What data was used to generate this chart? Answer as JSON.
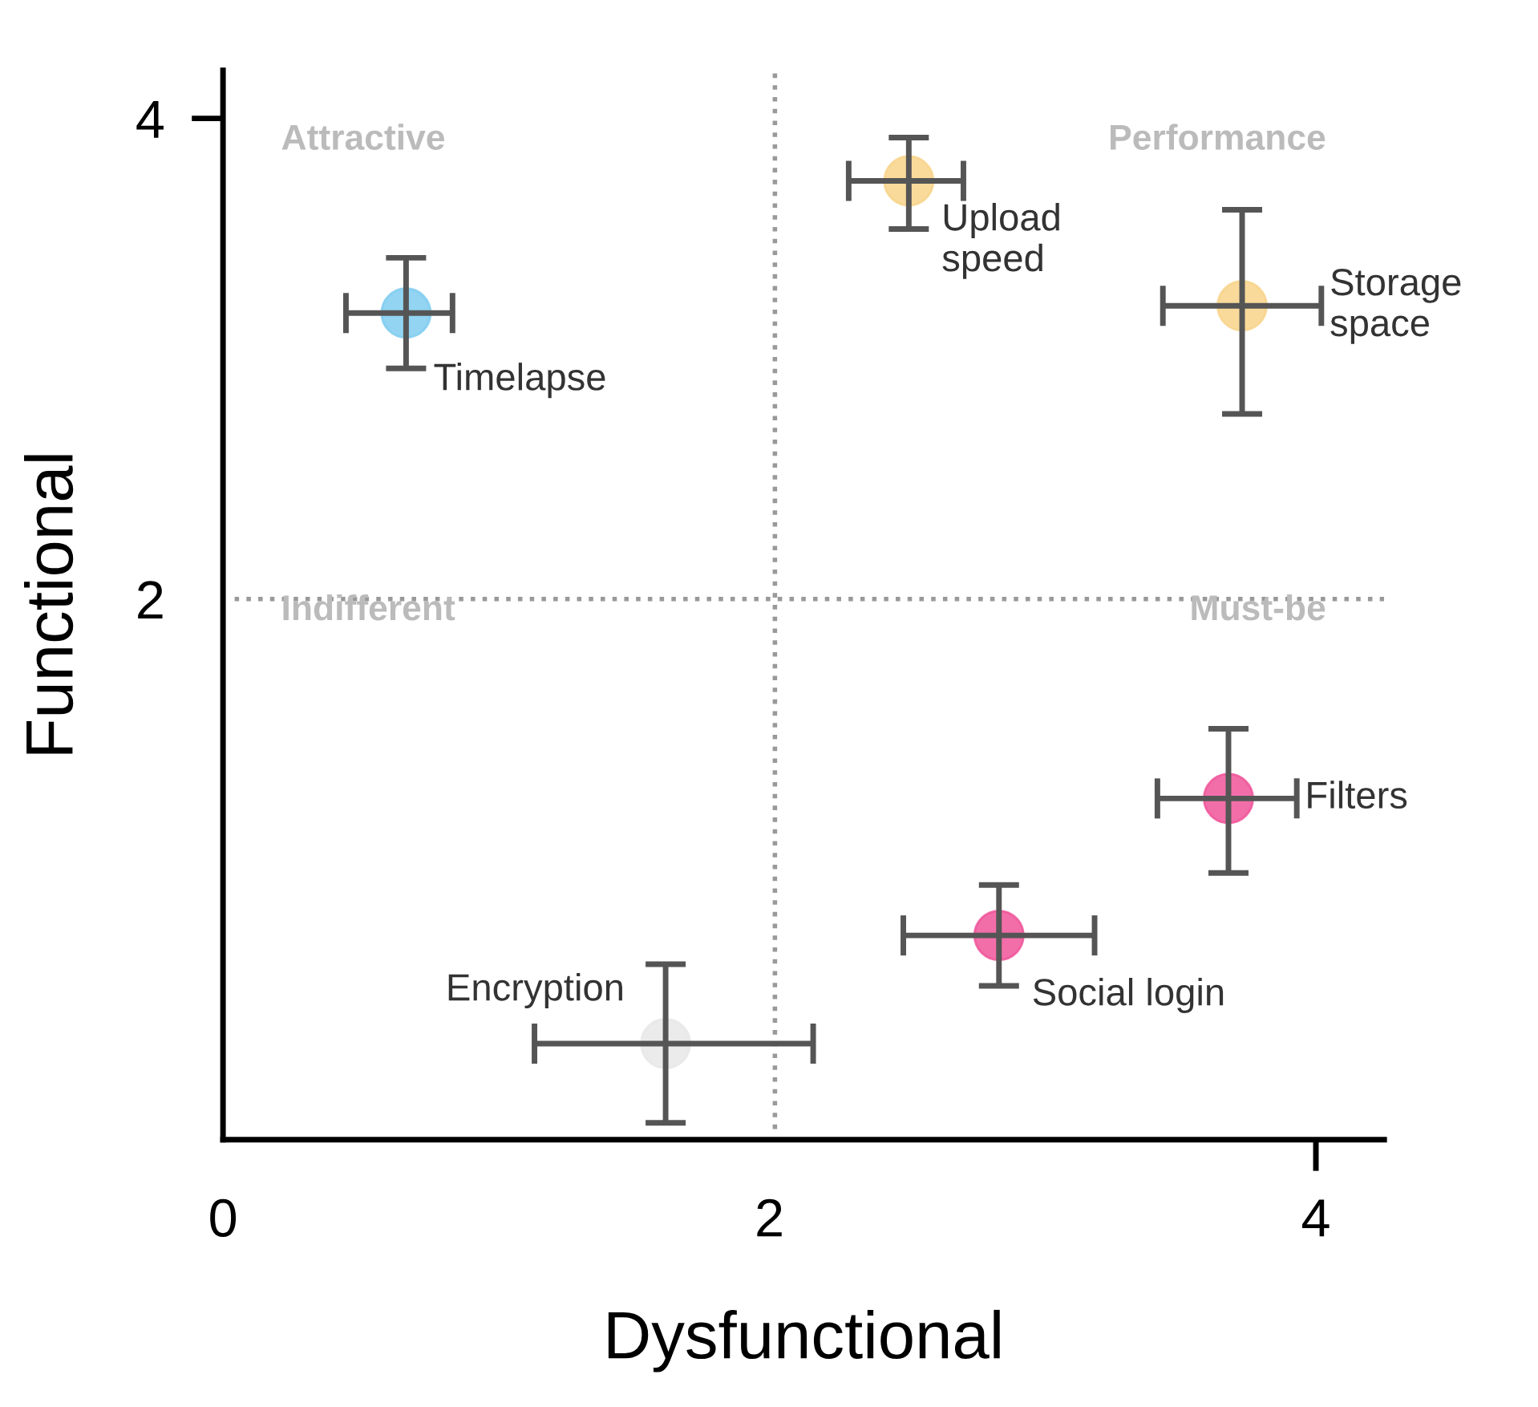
{
  "chart_data": {
    "type": "scatter",
    "xlabel": "Dysfunctional",
    "ylabel": "Functional",
    "xlim": [
      0,
      4.25
    ],
    "ylim": [
      -0.25,
      4.2
    ],
    "xticks": [
      0,
      2,
      4
    ],
    "yticks": [
      2,
      4
    ],
    "grid": false,
    "legend": false,
    "marker": "circle",
    "series": [
      {
        "name": "Timelapse",
        "color": "#7fcdf0",
        "x": [
          0.67
        ],
        "values": [
          3.19
        ],
        "errors": [
          [
            2.96,
            3.42
          ]
        ],
        "xerrors": [
          [
            0.45,
            0.84
          ]
        ]
      },
      {
        "name": "Upload speed",
        "color": "#f8d48a",
        "x": [
          2.51
        ],
        "values": [
          3.74
        ],
        "errors": [
          [
            3.54,
            3.92
          ]
        ],
        "xerrors": [
          [
            2.29,
            2.71
          ]
        ]
      },
      {
        "name": "Storage space",
        "color": "#f8d48a",
        "x": [
          3.73
        ],
        "values": [
          3.22
        ],
        "errors": [
          [
            2.77,
            3.62
          ]
        ],
        "xerrors": [
          [
            3.44,
            4.02
          ]
        ]
      },
      {
        "name": "Filters",
        "color": "#f0559a",
        "x": [
          3.68
        ],
        "values": [
          1.17
        ],
        "errors": [
          [
            0.86,
            1.46
          ]
        ],
        "xerrors": [
          [
            3.42,
            3.93
          ]
        ]
      },
      {
        "name": "Social login",
        "color": "#f0559a",
        "x": [
          2.84
        ],
        "values": [
          0.6
        ],
        "errors": [
          [
            0.39,
            0.81
          ]
        ],
        "xerrors": [
          [
            2.49,
            3.19
          ]
        ]
      },
      {
        "name": "Encryption",
        "color": "#e8e8e8",
        "x": [
          1.62
        ],
        "values": [
          0.15
        ],
        "errors": [
          [
            -0.18,
            0.48
          ]
        ],
        "xerrors": [
          [
            1.14,
            2.16
          ]
        ]
      }
    ],
    "ref_lines": [
      {
        "axis": "x",
        "value": 2.02,
        "line_style": "dotted"
      },
      {
        "axis": "y",
        "value": 2,
        "line_style": "dotted"
      }
    ],
    "annotations": [
      "Attractive",
      "Performance",
      "Indifferent",
      "Must-be"
    ]
  }
}
